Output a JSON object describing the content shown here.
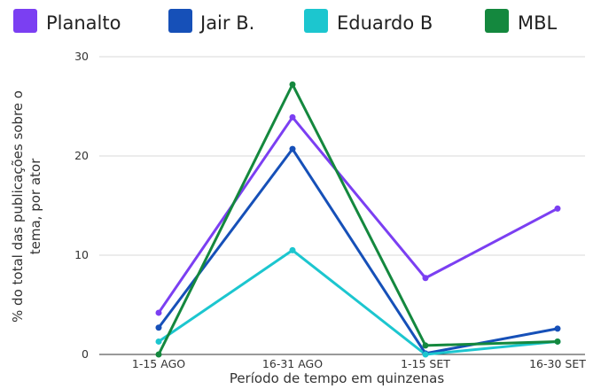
{
  "chart_data": {
    "type": "line",
    "title": "",
    "xlabel": "Período de tempo em quinzenas",
    "ylabel_lines": [
      "% do total das publicações sobre o",
      "tema, por ator"
    ],
    "categories": [
      "1-15 AGO",
      "16-31 AGO",
      "1-15 SET",
      "16-30 SET"
    ],
    "ylim": [
      0,
      30
    ],
    "yticks": [
      "0",
      "10",
      "20",
      "30"
    ],
    "grid": true,
    "legend_position": "top",
    "series": [
      {
        "name": "Planalto",
        "color": "#7b3ff2",
        "values": [
          4.2,
          23.9,
          7.7,
          14.7
        ]
      },
      {
        "name": "Jair B.",
        "color": "#1650b8",
        "values": [
          2.7,
          20.7,
          0.1,
          2.6
        ]
      },
      {
        "name": "Eduardo B",
        "color": "#1cc6cf",
        "values": [
          1.3,
          10.5,
          0.0,
          1.3
        ]
      },
      {
        "name": "MBL",
        "color": "#14883e",
        "values": [
          0.0,
          27.2,
          0.9,
          1.3
        ]
      }
    ]
  }
}
